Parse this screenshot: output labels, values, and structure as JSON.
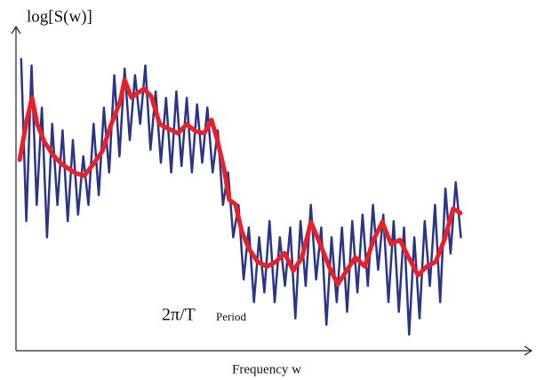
{
  "chart_data": {
    "type": "line",
    "y_label": "log[S(w)]",
    "x_label": "Frequency w",
    "annotations": [
      "2π/T",
      "Period"
    ],
    "xlim": [
      0,
      100
    ],
    "ylim": [
      0,
      100
    ],
    "series": [
      {
        "color": "#2b3585",
        "x": [
          1,
          2,
          3,
          4,
          5,
          6,
          7,
          8,
          9,
          10,
          11,
          12,
          13,
          14,
          15,
          16,
          17,
          18,
          19,
          20,
          21,
          22,
          23,
          24,
          25,
          26,
          27,
          28,
          29,
          30,
          31,
          32,
          33,
          34,
          35,
          36,
          37,
          38,
          39,
          40,
          41,
          42,
          43,
          44,
          45,
          46,
          47,
          48,
          49,
          50,
          51,
          52,
          53,
          54,
          55,
          56,
          57,
          58,
          59,
          60,
          61,
          62,
          63,
          64,
          65,
          66,
          67,
          68,
          69,
          70,
          71,
          72,
          73,
          74,
          75,
          76,
          77,
          78,
          79,
          80,
          81,
          82,
          83,
          84,
          85,
          86
        ],
        "values": [
          90,
          40,
          88,
          45,
          75,
          35,
          70,
          45,
          68,
          40,
          65,
          42,
          60,
          45,
          70,
          48,
          75,
          55,
          85,
          60,
          87,
          65,
          85,
          70,
          88,
          62,
          80,
          58,
          78,
          55,
          80,
          57,
          78,
          55,
          76,
          58,
          75,
          55,
          68,
          45,
          55,
          35,
          45,
          22,
          38,
          15,
          35,
          18,
          40,
          15,
          35,
          20,
          38,
          10,
          40,
          20,
          45,
          22,
          38,
          8,
          35,
          15,
          38,
          12,
          40,
          18,
          42,
          20,
          45,
          25,
          42,
          15,
          40,
          12,
          38,
          5,
          35,
          10,
          40,
          20,
          45,
          15,
          50,
          30,
          52,
          35
        ]
      },
      {
        "color": "#e8202a",
        "x": [
          0.7,
          2.1,
          3.1,
          4.1,
          5.5,
          7.2,
          8.9,
          11.5,
          13.2,
          14.9,
          16.7,
          18.4,
          20.1,
          21.0,
          22.3,
          23.5,
          24.7,
          26.1,
          27.8,
          29.5,
          31.3,
          33.0,
          34.7,
          36.4,
          37.8,
          39.0,
          40.2,
          41.2,
          42.4,
          43.6,
          45.0,
          46.7,
          48.5,
          50.2,
          51.9,
          53.6,
          55.3,
          57.0,
          58.8,
          60.5,
          62.2,
          63.9,
          65.6,
          67.4,
          69.1,
          70.8,
          72.5,
          74.2,
          75.9,
          77.7,
          79.4,
          81.1,
          82.8,
          84.5,
          85.9
        ],
        "values": [
          58.9,
          71.2,
          78.1,
          69.9,
          64.4,
          60.3,
          57.5,
          54.8,
          54.0,
          57.5,
          61.6,
          69.9,
          76.7,
          83.6,
          78.1,
          79.5,
          80.8,
          78.6,
          69.9,
          68.5,
          67.1,
          69.9,
          67.7,
          67.1,
          71.2,
          64.4,
          56.2,
          46.6,
          45.2,
          37.0,
          31.5,
          27.4,
          26.0,
          27.4,
          30.1,
          24.7,
          28.8,
          39.7,
          32.9,
          26.0,
          20.5,
          24.7,
          28.8,
          26.0,
          34.2,
          39.7,
          32.9,
          34.2,
          28.8,
          23.3,
          26.0,
          27.4,
          34.2,
          43.8,
          42.5
        ]
      }
    ]
  }
}
